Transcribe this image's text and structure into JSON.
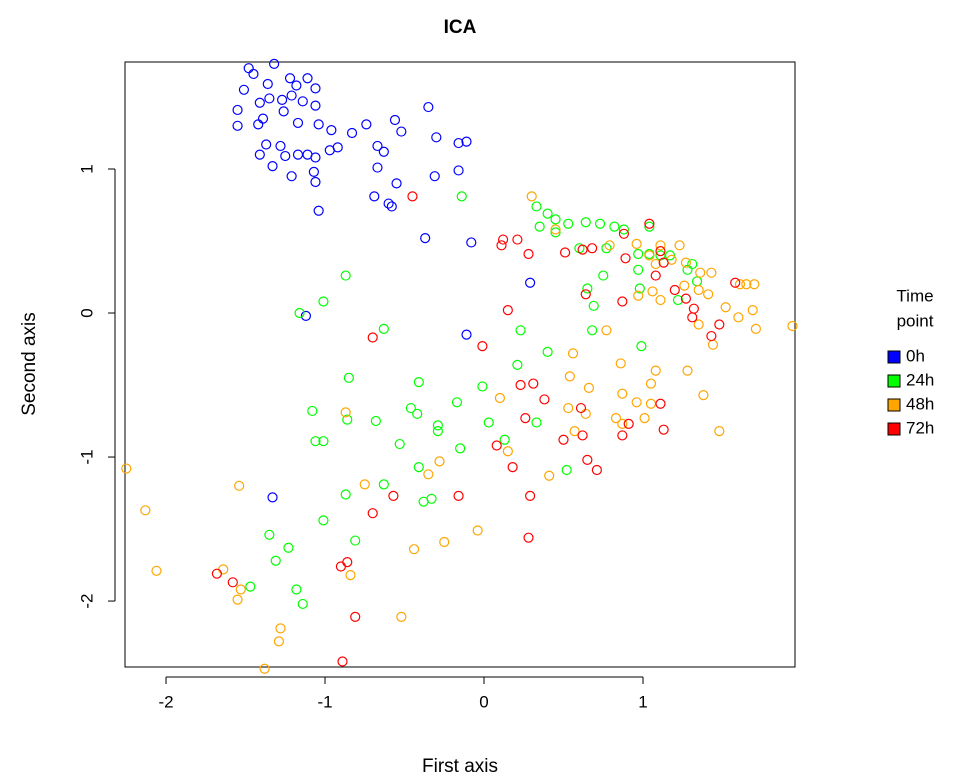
{
  "chart_data": {
    "type": "scatter",
    "title": "ICA",
    "x_label": "First axis",
    "y_label": "Second axis",
    "legend_title": [
      "Time",
      "point"
    ],
    "legend_position": "right",
    "xlim": [
      -2.258,
      1.956
    ],
    "ylim": [
      -2.458,
      1.743
    ],
    "xticks": [
      -2,
      -1,
      0,
      1
    ],
    "yticks": [
      -2,
      -1,
      0,
      1
    ],
    "series": [
      {
        "name": "0h",
        "color": "#0000ff",
        "x": [
          -1.48,
          -1.45,
          -1.32,
          -1.36,
          -1.51,
          -1.22,
          -1.11,
          -1.18,
          -1.06,
          -1.21,
          -1.35,
          -1.41,
          -1.55,
          -1.42,
          -1.55,
          -1.27,
          -1.14,
          -1.26,
          -1.39,
          -1.06,
          -1.17,
          -1.28,
          -1.04,
          -0.96,
          -1.37,
          -1.25,
          -1.17,
          -1.11,
          -1.06,
          -0.97,
          -0.92,
          -0.83,
          -0.74,
          -0.56,
          -0.52,
          -0.35,
          -0.3,
          -0.16,
          -0.11,
          -0.67,
          -0.63,
          -0.55,
          -0.67,
          -1.41,
          -1.33,
          -1.21,
          -1.07,
          -1.06,
          -1.04,
          -0.6,
          -0.69,
          -0.58,
          -0.31,
          -0.16,
          -0.37,
          -0.08,
          0.29,
          -0.11,
          -1.12,
          -1.33
        ],
        "values": [
          1.7,
          1.66,
          1.73,
          1.59,
          1.55,
          1.63,
          1.63,
          1.58,
          1.56,
          1.51,
          1.49,
          1.46,
          1.3,
          1.31,
          1.41,
          1.48,
          1.47,
          1.4,
          1.35,
          1.44,
          1.32,
          1.16,
          1.31,
          1.27,
          1.17,
          1.09,
          1.1,
          1.1,
          1.08,
          1.13,
          1.15,
          1.25,
          1.31,
          1.34,
          1.26,
          1.43,
          1.22,
          1.18,
          1.19,
          1.16,
          1.12,
          0.9,
          1.01,
          1.1,
          1.02,
          0.95,
          0.98,
          0.91,
          0.71,
          0.76,
          0.81,
          0.74,
          0.95,
          0.99,
          0.52,
          0.49,
          0.21,
          -0.15,
          -0.02,
          -1.28
        ]
      },
      {
        "name": "24h",
        "color": "#00ff00",
        "x": [
          0.33,
          0.4,
          0.45,
          0.53,
          0.64,
          0.73,
          0.82,
          0.88,
          1.04,
          0.35,
          0.45,
          0.6,
          0.77,
          0.97,
          1.04,
          1.11,
          1.17,
          1.31,
          1.28,
          1.34,
          0.97,
          0.75,
          0.65,
          0.98,
          1.22,
          0.68,
          0.99,
          0.4,
          0.23,
          0.21,
          -0.14,
          -0.87,
          -1.01,
          -1.16,
          -0.63,
          -0.85,
          -1.08,
          -1.06,
          -1.01,
          -0.86,
          -0.68,
          -0.41,
          -0.46,
          -0.42,
          -0.29,
          -0.29,
          -0.17,
          -0.01,
          0.03,
          0.13,
          0.33,
          -0.53,
          -0.41,
          -0.15,
          0.52,
          -0.87,
          -0.63,
          -0.33,
          -0.38,
          -1.01,
          -0.81,
          -1.35,
          -1.23,
          -1.31,
          -1.18,
          -1.14,
          -1.47,
          0.69
        ],
        "values": [
          0.74,
          0.69,
          0.65,
          0.62,
          0.63,
          0.62,
          0.6,
          0.58,
          0.6,
          0.6,
          0.56,
          0.45,
          0.45,
          0.41,
          0.41,
          0.4,
          0.4,
          0.34,
          0.3,
          0.22,
          0.3,
          0.26,
          0.17,
          0.17,
          0.09,
          -0.12,
          -0.23,
          -0.27,
          -0.12,
          -0.36,
          0.81,
          0.26,
          0.08,
          0.0,
          -0.11,
          -0.45,
          -0.68,
          -0.89,
          -0.89,
          -0.74,
          -0.75,
          -0.48,
          -0.66,
          -0.7,
          -0.78,
          -0.82,
          -0.62,
          -0.51,
          -0.76,
          -0.88,
          -0.76,
          -0.91,
          -1.07,
          -0.94,
          -1.09,
          -1.26,
          -1.19,
          -1.29,
          -1.31,
          -1.44,
          -1.58,
          -1.54,
          -1.63,
          -1.72,
          -1.92,
          -2.02,
          -1.9,
          0.05
        ]
      },
      {
        "name": "48h",
        "color": "#ffa500",
        "x": [
          0.3,
          0.45,
          0.79,
          0.96,
          1.11,
          1.23,
          1.04,
          1.08,
          1.18,
          1.27,
          1.36,
          1.43,
          1.26,
          1.35,
          1.41,
          1.61,
          1.65,
          1.7,
          1.06,
          0.97,
          1.11,
          1.52,
          1.6,
          1.69,
          1.71,
          1.94,
          1.35,
          1.44,
          0.77,
          0.56,
          0.86,
          1.08,
          1.28,
          1.05,
          0.66,
          0.54,
          0.87,
          1.38,
          0.96,
          1.05,
          0.53,
          0.64,
          0.83,
          1.01,
          0.87,
          1.48,
          0.57,
          0.1,
          0.15,
          -0.87,
          -0.28,
          -0.35,
          -0.75,
          0.41,
          -0.04,
          -0.25,
          -0.44,
          -2.25,
          -2.13,
          -2.06,
          -1.54,
          -1.64,
          -1.55,
          -1.53,
          -1.28,
          -1.29,
          -1.38,
          -0.84,
          -0.52
        ],
        "values": [
          0.81,
          0.58,
          0.47,
          0.48,
          0.47,
          0.47,
          0.4,
          0.34,
          0.37,
          0.35,
          0.28,
          0.28,
          0.19,
          0.16,
          0.13,
          0.2,
          0.2,
          0.2,
          0.15,
          0.12,
          0.09,
          0.04,
          -0.03,
          0.02,
          -0.11,
          -0.09,
          -0.08,
          -0.22,
          -0.12,
          -0.28,
          -0.35,
          -0.4,
          -0.4,
          -0.49,
          -0.52,
          -0.44,
          -0.56,
          -0.57,
          -0.62,
          -0.63,
          -0.66,
          -0.7,
          -0.73,
          -0.73,
          -0.77,
          -0.82,
          -0.82,
          -0.59,
          -0.96,
          -0.69,
          -1.03,
          -1.12,
          -1.19,
          -1.13,
          -1.51,
          -1.59,
          -1.64,
          -1.08,
          -1.37,
          -1.79,
          -1.2,
          -1.78,
          -1.99,
          -1.92,
          -2.19,
          -2.28,
          -2.47,
          -1.82,
          -2.11
        ]
      },
      {
        "name": "72h",
        "color": "#ff0000",
        "x": [
          -0.45,
          0.12,
          0.21,
          0.11,
          0.28,
          0.51,
          0.62,
          0.68,
          0.88,
          1.04,
          1.11,
          1.13,
          1.08,
          1.2,
          1.27,
          1.32,
          1.31,
          1.48,
          1.43,
          1.58,
          0.89,
          0.64,
          0.87,
          0.15,
          -0.01,
          -0.7,
          0.31,
          0.23,
          0.38,
          1.11,
          1.13,
          0.91,
          0.87,
          0.61,
          0.26,
          0.5,
          0.62,
          0.65,
          0.71,
          0.08,
          0.18,
          -0.16,
          0.29,
          0.28,
          -0.57,
          -0.7,
          -0.9,
          -0.86,
          -1.68,
          -1.58,
          -0.81,
          -0.89
        ],
        "values": [
          0.81,
          0.51,
          0.51,
          0.47,
          0.41,
          0.42,
          0.44,
          0.45,
          0.55,
          0.62,
          0.43,
          0.35,
          0.26,
          0.16,
          0.1,
          0.03,
          -0.03,
          -0.08,
          -0.16,
          0.21,
          0.38,
          0.13,
          0.08,
          0.02,
          -0.23,
          -0.17,
          -0.49,
          -0.5,
          -0.6,
          -0.63,
          -0.81,
          -0.77,
          -0.85,
          -0.66,
          -0.73,
          -0.88,
          -0.85,
          -1.02,
          -1.09,
          -0.92,
          -1.07,
          -1.27,
          -1.27,
          -1.56,
          -1.27,
          -1.39,
          -1.76,
          -1.73,
          -1.81,
          -1.87,
          -2.11,
          -2.42
        ]
      }
    ]
  }
}
